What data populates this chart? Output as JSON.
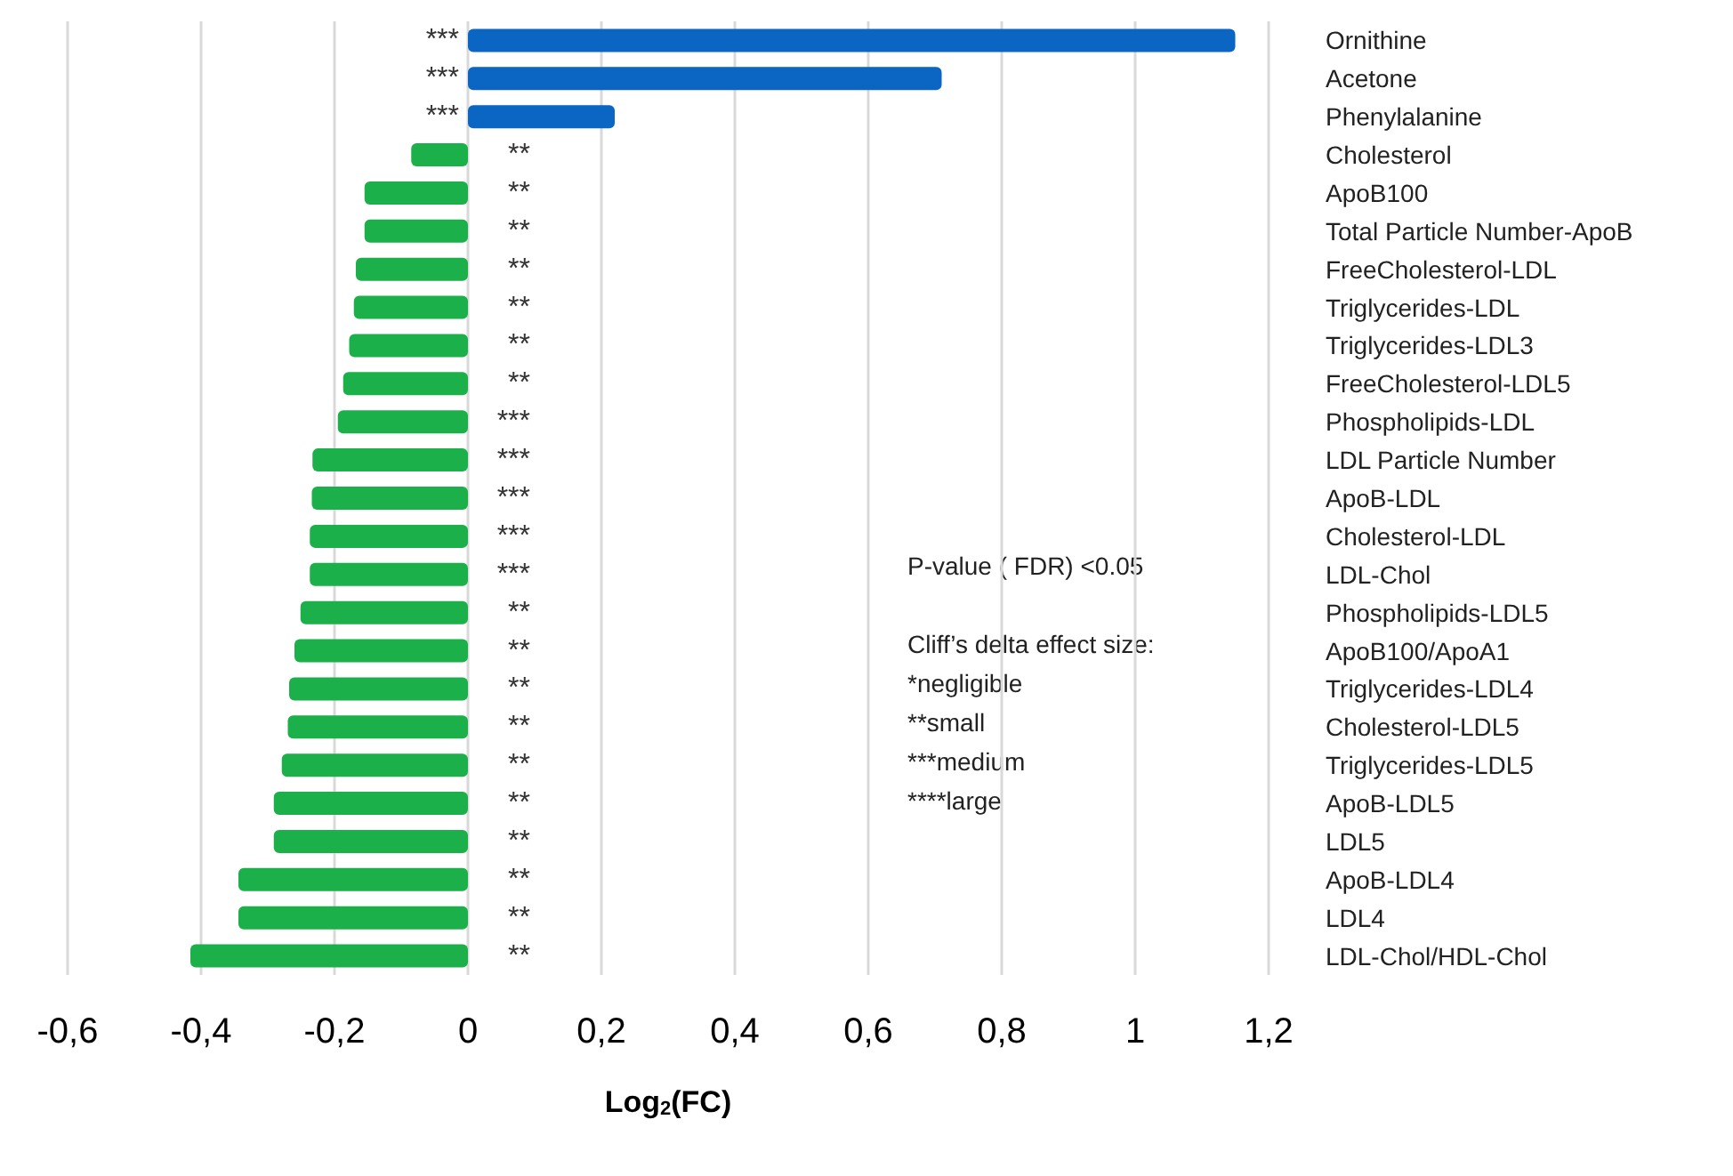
{
  "chart_data": {
    "type": "bar",
    "orientation": "horizontal",
    "categories": [
      "Ornithine",
      "Acetone",
      "Phenylalanine",
      "Cholesterol",
      "ApoB100",
      "Total Particle Number-ApoB",
      "FreeCholesterol-LDL",
      "Triglycerides-LDL",
      "Triglycerides-LDL3",
      "FreeCholesterol-LDL5",
      "Phospholipids-LDL",
      "LDL Particle Number",
      "ApoB-LDL",
      "Cholesterol-LDL",
      "LDL-Chol",
      "Phospholipids-LDL5",
      "ApoB100/ApoA1",
      "Triglycerides-LDL4",
      "Cholesterol-LDL5",
      "Triglycerides-LDL5",
      "ApoB-LDL5",
      "LDL5",
      "ApoB-LDL4",
      "LDL4",
      "LDL-Chol/HDL-Chol"
    ],
    "values": [
      1.15,
      0.71,
      0.22,
      -0.085,
      -0.155,
      -0.155,
      -0.168,
      -0.171,
      -0.178,
      -0.187,
      -0.195,
      -0.233,
      -0.234,
      -0.237,
      -0.237,
      -0.251,
      -0.26,
      -0.268,
      -0.27,
      -0.279,
      -0.291,
      -0.291,
      -0.344,
      -0.344,
      -0.416
    ],
    "colors": [
      "#0a66c2",
      "#0a66c2",
      "#0a66c2",
      "#1cb04a",
      "#1cb04a",
      "#1cb04a",
      "#1cb04a",
      "#1cb04a",
      "#1cb04a",
      "#1cb04a",
      "#1cb04a",
      "#1cb04a",
      "#1cb04a",
      "#1cb04a",
      "#1cb04a",
      "#1cb04a",
      "#1cb04a",
      "#1cb04a",
      "#1cb04a",
      "#1cb04a",
      "#1cb04a",
      "#1cb04a",
      "#1cb04a",
      "#1cb04a",
      "#1cb04a"
    ],
    "value_labels": [
      "***",
      "***",
      "***",
      "**",
      "**",
      "**",
      "**",
      "**",
      "**",
      "**",
      "***",
      "***",
      "***",
      "***",
      "***",
      "**",
      "**",
      "**",
      "**",
      "**",
      "**",
      "**",
      "**",
      "**",
      "**"
    ],
    "xlabel": "Log$_{2}$(FC)",
    "xlim": [
      -0.6,
      1.2
    ],
    "xticks": [
      {
        "value": -0.6,
        "label": "-0,6"
      },
      {
        "value": -0.4,
        "label": "-0,4"
      },
      {
        "value": -0.2,
        "label": "-0,2"
      },
      0,
      {
        "value": 0.2,
        "label": "0,2"
      },
      {
        "value": 0.4,
        "label": "0,4"
      },
      {
        "value": 0.6,
        "label": "0,6"
      },
      {
        "value": 0.8,
        "label": "0,8"
      },
      1,
      {
        "value": 1.2,
        "label": "1,2"
      }
    ],
    "grid": "x",
    "annotations": [
      "P-value ( FDR) <0.05",
      "Cliff’s delta effect size:",
      "*negligible",
      "**small",
      "***medium",
      "****large"
    ]
  }
}
